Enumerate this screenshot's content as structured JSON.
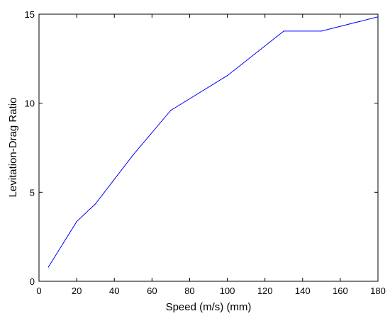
{
  "chart_data": {
    "type": "line",
    "title": "",
    "xlabel": "Speed (m/s) (mm)",
    "ylabel": "Levitation-Drag Ratio",
    "xlim": [
      0,
      180
    ],
    "ylim": [
      0,
      15
    ],
    "xticks": [
      0,
      20,
      40,
      60,
      80,
      100,
      120,
      140,
      160,
      180
    ],
    "yticks": [
      0,
      5,
      10,
      15
    ],
    "grid": false,
    "legend": "none",
    "series": [
      {
        "color": "#0000ff",
        "x": [
          5,
          20,
          30,
          50,
          70,
          100,
          130,
          150,
          180
        ],
        "y": [
          0.8,
          3.35,
          4.35,
          7.1,
          9.6,
          11.55,
          14.05,
          14.05,
          14.85
        ]
      }
    ]
  }
}
